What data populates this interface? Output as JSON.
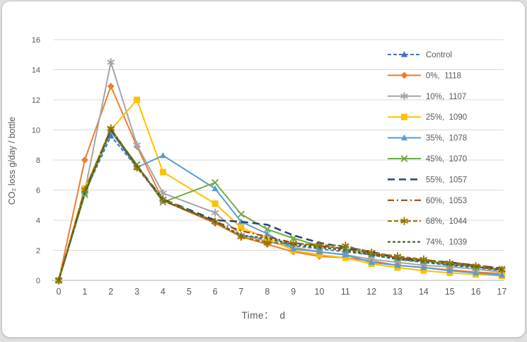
{
  "window": {
    "background": "#ffffff",
    "border_color": "#c6c6c6",
    "page_background": "#dfdfdf"
  },
  "chart_data": {
    "type": "line",
    "title": "",
    "xlabel": "Time：  d",
    "ylabel": "CO₂ loss g/day / bottle",
    "x": [
      0,
      1,
      2,
      3,
      4,
      6,
      7,
      8,
      9,
      10,
      11,
      12,
      13,
      14,
      15,
      16,
      17
    ],
    "x_tick_labels": [
      "0",
      "1",
      "2",
      "3",
      "4",
      "5",
      "6",
      "7",
      "8",
      "9",
      "10",
      "11",
      "12",
      "13",
      "14",
      "15",
      "16",
      "17"
    ],
    "ylim": [
      0,
      16
    ],
    "y_ticks": [
      0,
      2,
      4,
      6,
      8,
      10,
      12,
      14,
      16
    ],
    "grid": true,
    "gridline_color": "#d9d9d9",
    "axis_line_color": "#bfbfbf",
    "axis_text_color": "#595959",
    "legend_position": "right-inside",
    "series": [
      {
        "id": "control",
        "name": "Control",
        "color": "#4472C4",
        "dash": "5 3",
        "marker": "triangle",
        "width": 2,
        "values": [
          0,
          5.8,
          9.6,
          7.5,
          5.3,
          3.9,
          3.0,
          2.7,
          2.3,
          2.1,
          1.9,
          1.7,
          1.4,
          1.2,
          1.0,
          0.85,
          0.65
        ]
      },
      {
        "id": "pct0",
        "name": "0%,  1118",
        "color": "#ED7D31",
        "dash": "solid",
        "marker": "diamond",
        "width": 2,
        "values": [
          0,
          8.0,
          12.9,
          8.9,
          5.3,
          3.8,
          2.9,
          2.4,
          1.9,
          1.6,
          1.5,
          1.3,
          1.0,
          0.85,
          0.7,
          0.55,
          0.45
        ]
      },
      {
        "id": "pct10",
        "name": "10%,  1107",
        "color": "#A5A5A5",
        "dash": "solid",
        "marker": "asterisk",
        "width": 2,
        "values": [
          0,
          5.9,
          14.5,
          9.0,
          5.8,
          4.5,
          3.0,
          2.6,
          2.2,
          1.9,
          1.7,
          1.4,
          1.2,
          1.0,
          0.9,
          0.75,
          0.55
        ]
      },
      {
        "id": "pct25",
        "name": "25%,  1090",
        "color": "#FFC000",
        "dash": "solid",
        "marker": "square",
        "width": 2,
        "values": [
          0,
          6.1,
          10.0,
          12.0,
          7.2,
          5.1,
          3.5,
          2.8,
          2.0,
          1.7,
          1.5,
          1.1,
          0.85,
          0.65,
          0.5,
          0.4,
          0.3
        ]
      },
      {
        "id": "pct35",
        "name": "35%,  1078",
        "color": "#5B9BD5",
        "dash": "solid",
        "marker": "triangle",
        "width": 2,
        "values": [
          0,
          5.8,
          9.9,
          7.5,
          8.3,
          6.1,
          3.9,
          3.1,
          2.1,
          1.9,
          1.7,
          1.2,
          1.0,
          0.85,
          0.65,
          0.5,
          0.35
        ]
      },
      {
        "id": "pct45",
        "name": "45%,  1070",
        "color": "#70AD47",
        "dash": "solid",
        "marker": "x",
        "width": 2,
        "values": [
          0,
          5.7,
          10.0,
          7.7,
          5.2,
          6.5,
          4.4,
          3.4,
          2.8,
          2.3,
          2.1,
          1.8,
          1.5,
          1.3,
          1.1,
          0.9,
          0.75
        ]
      },
      {
        "id": "pct55",
        "name": "55%,  1057",
        "color": "#264478",
        "dash": "10 6",
        "marker": "none",
        "width": 2.5,
        "values": [
          0,
          5.9,
          10.0,
          7.6,
          5.4,
          4.0,
          3.9,
          3.7,
          3.0,
          2.5,
          2.2,
          1.9,
          1.5,
          1.35,
          1.2,
          1.0,
          0.8
        ]
      },
      {
        "id": "pct60",
        "name": "60%,  1053",
        "color": "#9E480E",
        "dash": "9 4 2 4",
        "marker": "none",
        "width": 2.2,
        "values": [
          0,
          5.8,
          10.1,
          7.6,
          5.3,
          3.9,
          3.3,
          2.9,
          2.5,
          2.3,
          2.1,
          1.8,
          1.5,
          1.35,
          1.2,
          1.0,
          0.8
        ]
      },
      {
        "id": "pct68",
        "name": "68%,  1044",
        "color": "#997300",
        "dash": "6 3",
        "marker": "asterisk",
        "width": 2.2,
        "values": [
          0,
          6.0,
          10.1,
          7.5,
          5.4,
          3.9,
          2.9,
          2.5,
          2.45,
          2.35,
          2.3,
          1.85,
          1.6,
          1.4,
          1.15,
          0.95,
          0.7
        ]
      },
      {
        "id": "pct74",
        "name": "74%,  1039",
        "color": "#43682B",
        "dash": "4 3",
        "marker": "none",
        "width": 2.2,
        "values": [
          0,
          5.8,
          10.0,
          7.6,
          5.3,
          3.9,
          3.0,
          2.8,
          2.4,
          2.2,
          2.0,
          1.7,
          1.4,
          1.25,
          1.05,
          0.9,
          0.7
        ]
      }
    ]
  }
}
